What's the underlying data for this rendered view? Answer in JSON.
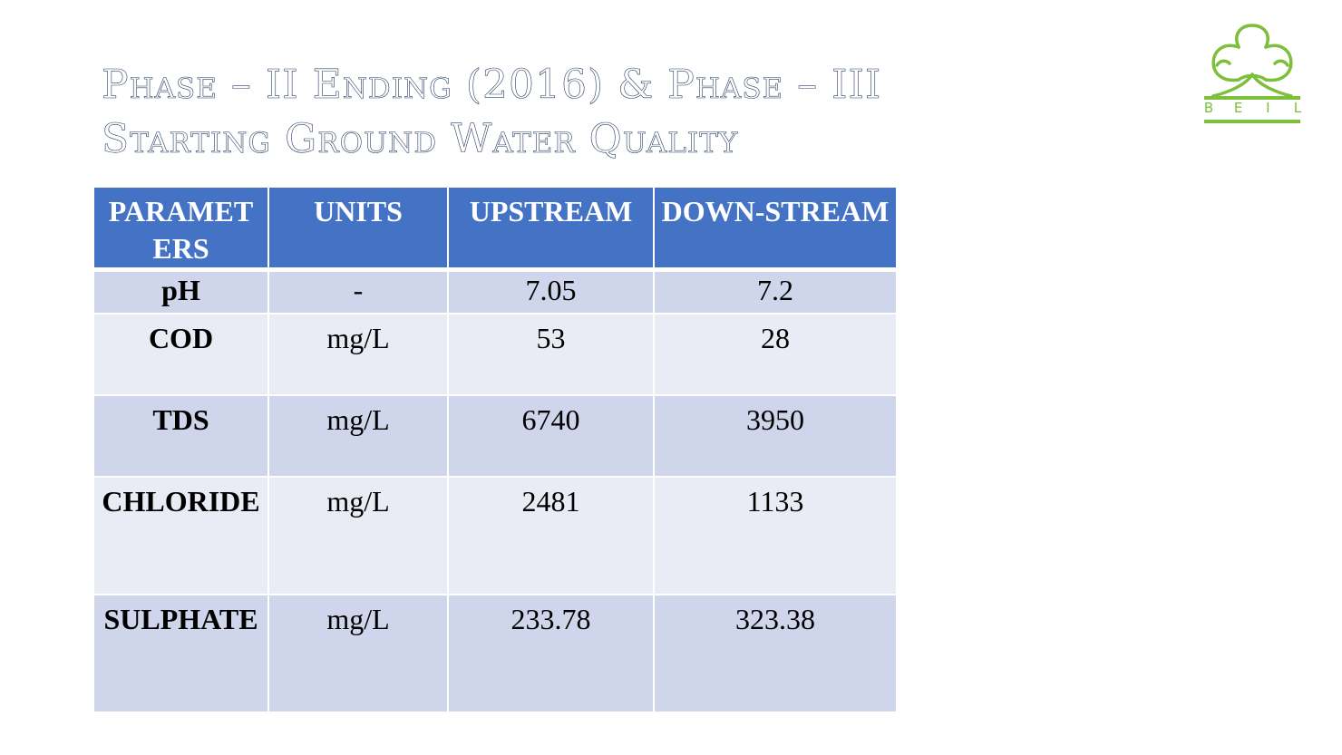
{
  "title": {
    "line1": "Phase – II Ending (2016) & Phase – III",
    "line2": "Starting Ground Water Quality"
  },
  "logo": {
    "icon": "beil-clover-logo",
    "letters": [
      "B",
      "E",
      "I",
      "L"
    ],
    "color": "#7cbf3a"
  },
  "table": {
    "headers": [
      "PARAMET ERS",
      "UNITS",
      "UPSTREAM",
      "DOWN-STREAM"
    ],
    "rows": [
      {
        "parameter": "pH",
        "units": "-",
        "upstream": "7.05",
        "downstream": "7.2"
      },
      {
        "parameter": "COD",
        "units": "mg/L",
        "upstream": "53",
        "downstream": "28"
      },
      {
        "parameter": "TDS",
        "units": "mg/L",
        "upstream": "6740",
        "downstream": "3950"
      },
      {
        "parameter": "CHLORIDE",
        "units": "mg/L",
        "upstream": "2481",
        "downstream": "1133"
      },
      {
        "parameter": "SULPHATE",
        "units": "mg/L",
        "upstream": "233.78",
        "downstream": "323.38"
      }
    ],
    "colors": {
      "header": "#4472c4",
      "row_dark": "#cfd5ea",
      "row_light": "#e9ebf5"
    }
  }
}
